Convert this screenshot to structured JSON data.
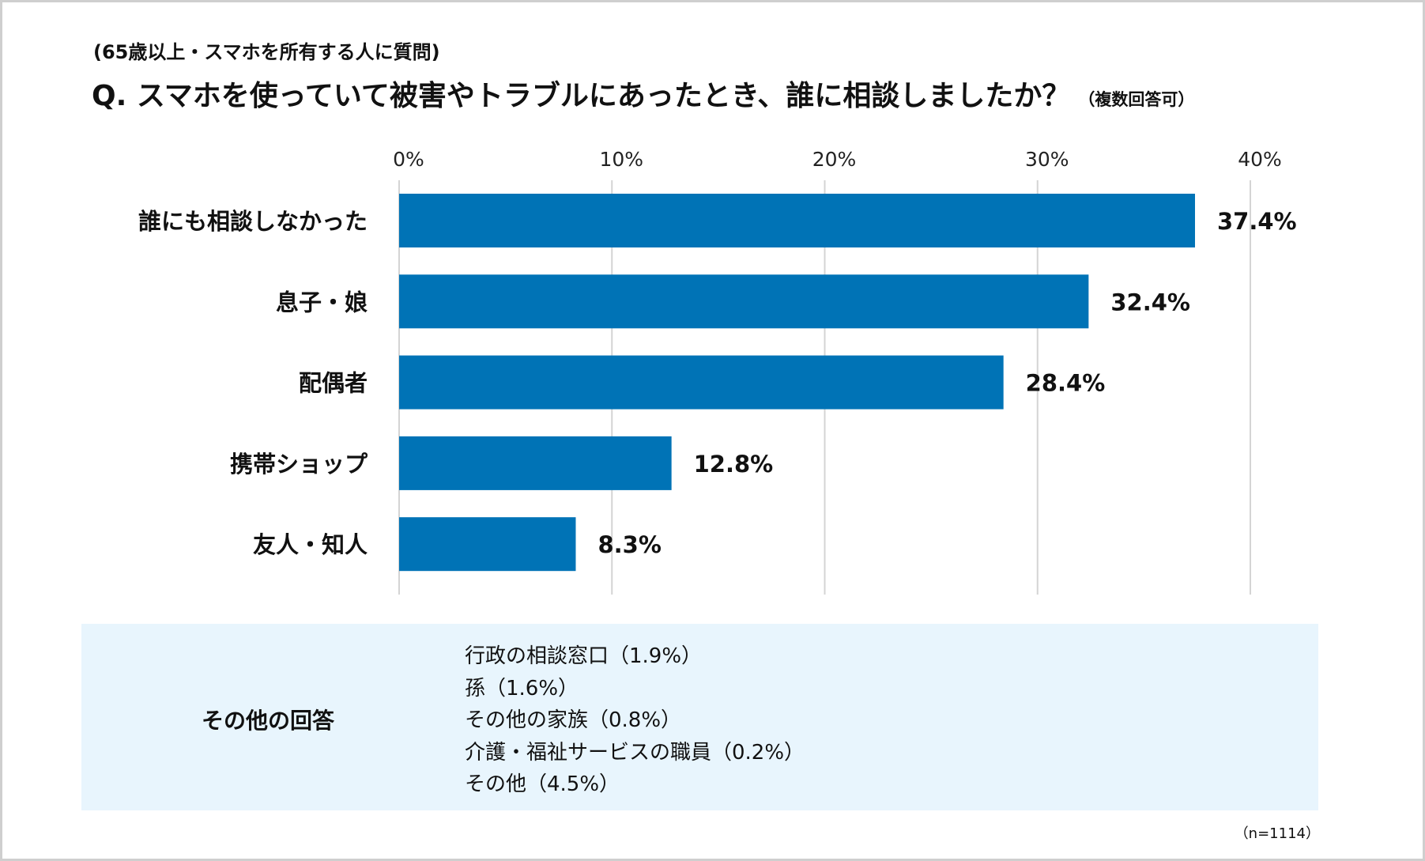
{
  "subtitle": "(65歳以上・スマホを所有する人に質問)",
  "title": "Q. スマホを使っていて被害やトラブルにあったとき、誰に相談しましたか？",
  "title_note": "（複数回答可）",
  "chart_data": {
    "type": "bar",
    "orientation": "horizontal",
    "categories": [
      "誰にも相談しなかった",
      "息子・娘",
      "配偶者",
      "携帯ショップ",
      "友人・知人"
    ],
    "values": [
      37.4,
      32.4,
      28.4,
      12.8,
      8.3
    ],
    "value_labels": [
      "37.4%",
      "32.4%",
      "28.4%",
      "12.8%",
      "8.3%"
    ],
    "xlim": [
      0,
      40
    ],
    "xticks": [
      "0%",
      "10%",
      "20%",
      "30%",
      "40%"
    ],
    "xtick_values": [
      0,
      10,
      20,
      30,
      40
    ],
    "xaxis_position": "top",
    "grid": true,
    "bar_color": "#0073b6",
    "grid_color": "#d4d4d4"
  },
  "other_answers": {
    "label": "その他の回答",
    "items": [
      "行政の相談窓口（1.9%）",
      "孫（1.6%）",
      "その他の家族（0.8%）",
      "介護・福祉サービスの職員（0.2%）",
      "その他（4.5%）"
    ],
    "background": "#e8f5fd"
  },
  "sample_size": "（n=1114）"
}
